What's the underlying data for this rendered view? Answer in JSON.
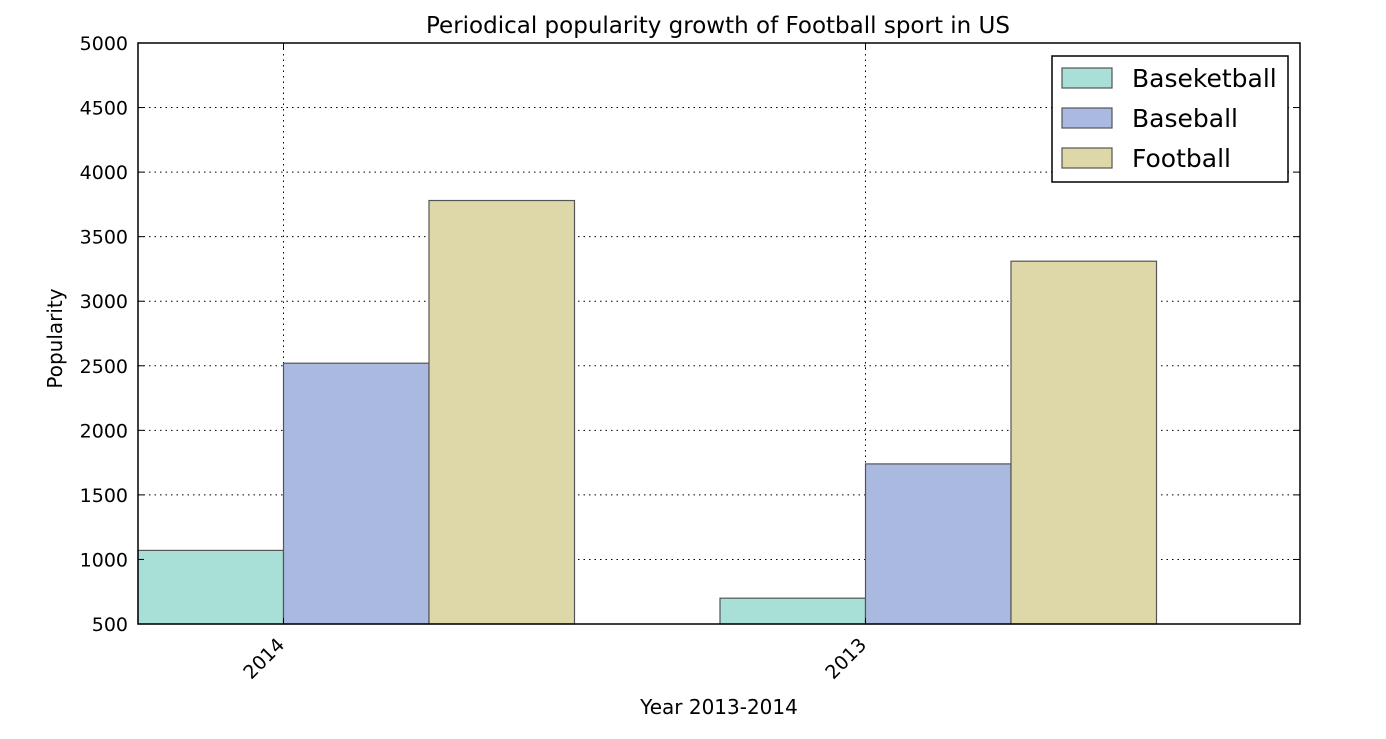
{
  "chart_data": {
    "type": "bar",
    "title": "Periodical popularity growth of Football sport in US",
    "xlabel": "Year 2013-2014",
    "ylabel": "Popularity",
    "categories": [
      "2014",
      "2013"
    ],
    "series": [
      {
        "name": "Baseketball",
        "values": [
          1070,
          700
        ],
        "color": "#a8e0d8"
      },
      {
        "name": "Baseball",
        "values": [
          2520,
          1740
        ],
        "color": "#a9b9e0"
      },
      {
        "name": "Football",
        "values": [
          3780,
          3310
        ],
        "color": "#ded8a8"
      }
    ],
    "ylim": [
      500,
      5000
    ],
    "yticks": [
      500,
      1000,
      1500,
      2000,
      2500,
      3000,
      3500,
      4000,
      4500,
      5000
    ],
    "grid": true,
    "grid_style": "dotted",
    "legend_position": "top-right",
    "bar_edge_color": "#555555"
  }
}
